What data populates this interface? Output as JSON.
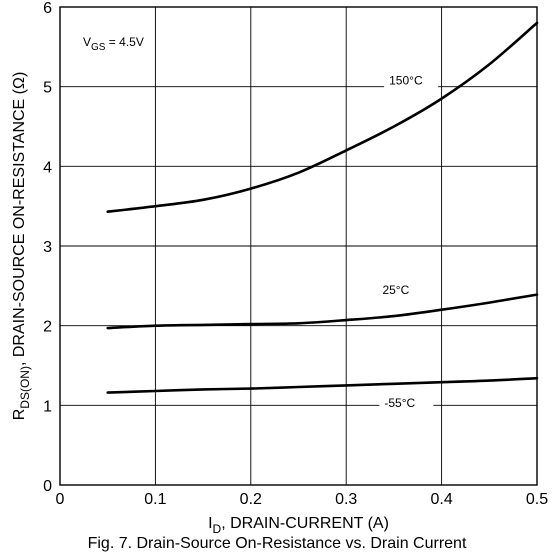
{
  "chart_data": {
    "type": "line",
    "title": "",
    "xlabel": {
      "main": "I",
      "sub": "D",
      "rest": ", DRAIN-CURRENT (A)"
    },
    "ylabel": {
      "main": "R",
      "sub": "DS(ON)",
      "rest": ", DRAIN-SOURCE ON-RESISTANCE (Ω)"
    },
    "xlim": [
      0,
      0.5
    ],
    "ylim": [
      0,
      6
    ],
    "xticks": [
      0,
      0.1,
      0.2,
      0.3,
      0.4,
      0.5
    ],
    "xtick_labels": [
      "0",
      "0.1",
      "0.2",
      "0.3",
      "0.4",
      "0.5"
    ],
    "yticks": [
      0,
      1,
      2,
      3,
      4,
      5,
      6
    ],
    "ytick_labels": [
      "0",
      "1",
      "2",
      "3",
      "4",
      "5",
      "6"
    ],
    "grid": true,
    "condition": {
      "main": "V",
      "sub": "GS",
      "rest": " = 4.5V"
    },
    "series": [
      {
        "name": "150°C",
        "x": [
          0.05,
          0.1,
          0.15,
          0.2,
          0.25,
          0.3,
          0.35,
          0.4,
          0.45,
          0.5
        ],
        "y": [
          3.43,
          3.5,
          3.58,
          3.72,
          3.92,
          4.2,
          4.5,
          4.85,
          5.28,
          5.8
        ],
        "label_x": 0.345,
        "label_y": 5.03
      },
      {
        "name": "25°C",
        "x": [
          0.05,
          0.1,
          0.15,
          0.2,
          0.25,
          0.3,
          0.35,
          0.4,
          0.45,
          0.5
        ],
        "y": [
          1.97,
          2.0,
          2.01,
          2.02,
          2.03,
          2.07,
          2.12,
          2.2,
          2.29,
          2.39
        ],
        "label_x": 0.338,
        "label_y": 2.4
      },
      {
        "name": "-55°C",
        "x": [
          0.05,
          0.1,
          0.15,
          0.2,
          0.25,
          0.3,
          0.35,
          0.4,
          0.45,
          0.5
        ],
        "y": [
          1.16,
          1.18,
          1.2,
          1.21,
          1.23,
          1.25,
          1.27,
          1.29,
          1.31,
          1.34
        ],
        "label_x": 0.34,
        "label_y": 0.98
      }
    ]
  },
  "figure_caption": "Fig. 7. Drain-Source On-Resistance vs. Drain Current"
}
